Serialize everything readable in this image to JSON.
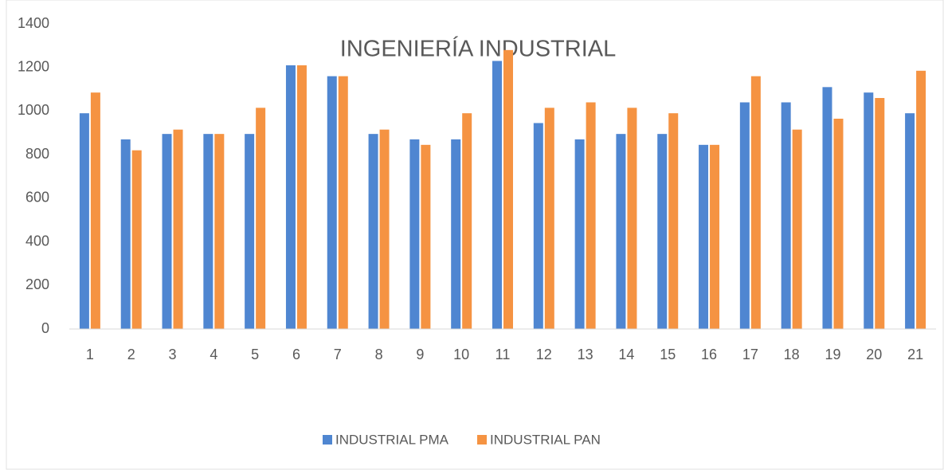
{
  "chart_data": {
    "type": "bar",
    "title": "INGENIERÍA INDUSTRIAL",
    "categories": [
      "1",
      "2",
      "3",
      "4",
      "5",
      "6",
      "7",
      "8",
      "9",
      "10",
      "11",
      "12",
      "13",
      "14",
      "15",
      "16",
      "17",
      "18",
      "19",
      "20",
      "21"
    ],
    "series": [
      {
        "name": "INDUSTRIAL PMA",
        "color": "#4f86d1",
        "values": [
          990,
          870,
          895,
          895,
          895,
          1210,
          1160,
          895,
          870,
          870,
          1230,
          945,
          870,
          895,
          895,
          845,
          1040,
          1040,
          1110,
          1085,
          990
        ]
      },
      {
        "name": "INDUSTRIAL PAN",
        "color": "#f59342",
        "values": [
          1085,
          820,
          915,
          895,
          1015,
          1210,
          1160,
          915,
          845,
          990,
          1280,
          1015,
          1040,
          1015,
          990,
          845,
          1160,
          915,
          965,
          1060,
          1185
        ]
      }
    ],
    "ylim": [
      0,
      1400
    ],
    "yticks": [
      0,
      200,
      400,
      600,
      800,
      1000,
      1200,
      1400
    ],
    "grid": false,
    "legend": "bottom"
  }
}
